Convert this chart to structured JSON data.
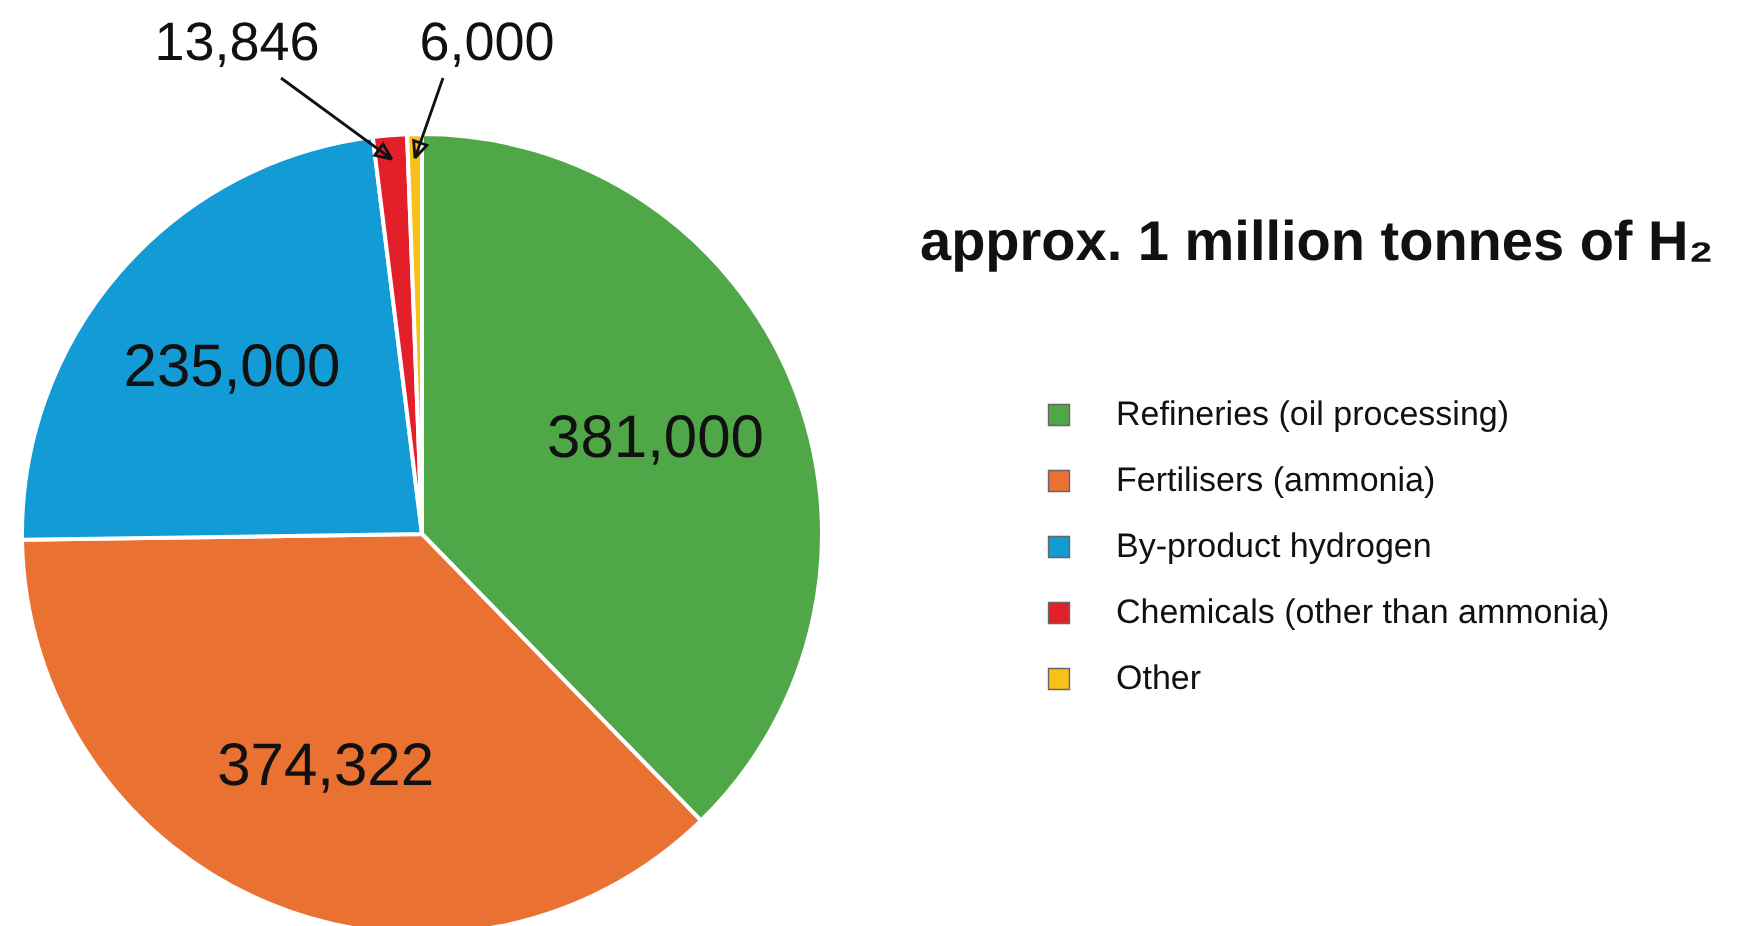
{
  "chart_data": {
    "type": "pie",
    "title": "approx. 1 million tonnes of H₂",
    "categories": [
      "Refineries (oil processing)",
      "Fertilisers (ammonia)",
      "By-product hydrogen",
      "Chemicals (other than ammonia)",
      "Other"
    ],
    "values": [
      381000,
      374322,
      235000,
      13846,
      6000
    ],
    "value_labels": [
      "381,000",
      "374,322",
      "235,000",
      "13,846",
      "6,000"
    ],
    "colors": [
      "#50a748",
      "#e97132",
      "#139bd5",
      "#e3202a",
      "#f8c11a"
    ],
    "legend": "right"
  }
}
